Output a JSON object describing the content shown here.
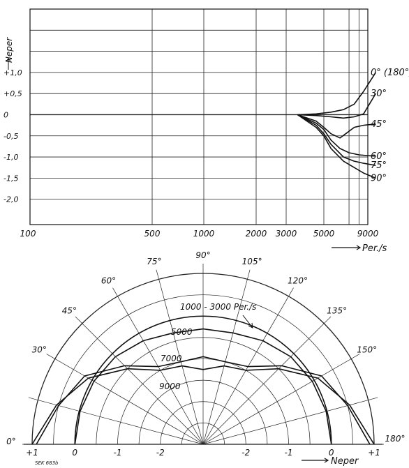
{
  "chart_data": [
    {
      "type": "line",
      "title": "",
      "ylabel": "Neper",
      "xlabel": "Per./s",
      "x_scale": "log",
      "x_ticks": [
        100,
        500,
        1000,
        2000,
        3000,
        5000,
        9000
      ],
      "x_tick_labels": [
        "100",
        "500",
        "1000",
        "2000",
        "3000",
        "5000",
        "9000"
      ],
      "y_ticks": [
        1.0,
        0.5,
        0,
        -0.5,
        -1.0,
        -1.5,
        -2.0
      ],
      "y_tick_labels": [
        "+1,0",
        "+0,5",
        "0",
        "-0,5",
        "-1,0",
        "-1,5",
        "-2,0"
      ],
      "ylim": [
        -2.6,
        2.5
      ],
      "grid": true,
      "series": [
        {
          "name": "0° (180°)",
          "x": [
            3500,
            4500,
            5500,
            6500,
            7500,
            8500,
            10000
          ],
          "y": [
            0,
            0.02,
            0.06,
            0.12,
            0.25,
            0.55,
            1.0
          ]
        },
        {
          "name": "30°",
          "x": [
            3500,
            4500,
            5500,
            6500,
            7500,
            8500,
            10000
          ],
          "y": [
            0,
            -0.02,
            -0.05,
            -0.08,
            -0.05,
            0.02,
            0.5
          ]
        },
        {
          "name": "45°",
          "x": [
            3500,
            4500,
            5000,
            5500,
            6200,
            6700,
            7500,
            8500,
            10000
          ],
          "y": [
            0,
            -0.15,
            -0.3,
            -0.45,
            -0.55,
            -0.45,
            -0.3,
            -0.25,
            -0.22
          ]
        },
        {
          "name": "60°",
          "x": [
            3500,
            4500,
            5000,
            5500,
            6200,
            7000,
            8000,
            9000,
            10000
          ],
          "y": [
            0,
            -0.2,
            -0.35,
            -0.6,
            -0.8,
            -0.9,
            -0.95,
            -0.97,
            -0.98
          ]
        },
        {
          "name": "75°",
          "x": [
            3500,
            4500,
            5000,
            5500,
            6500,
            7500,
            8500,
            10000
          ],
          "y": [
            0,
            -0.25,
            -0.45,
            -0.7,
            -1.0,
            -1.1,
            -1.15,
            -1.2
          ]
        },
        {
          "name": "90°",
          "x": [
            3500,
            4500,
            5000,
            5500,
            6500,
            7500,
            8500,
            10000
          ],
          "y": [
            0,
            -0.3,
            -0.5,
            -0.8,
            -1.1,
            -1.25,
            -1.38,
            -1.5
          ]
        }
      ]
    },
    {
      "type": "polar",
      "title": "",
      "radial_label": "Neper",
      "radial_tick_labels": [
        "+1",
        "0",
        "-1",
        "-2",
        "-2",
        "-1",
        "0",
        "+1"
      ],
      "angle_labels": [
        "0°",
        "30°",
        "45°",
        "60°",
        "75°",
        "90°",
        "105°",
        "120°",
        "135°",
        "150°",
        "180°"
      ],
      "angles_deg": [
        0,
        30,
        45,
        60,
        75,
        90,
        105,
        120,
        135,
        150,
        180
      ],
      "r_range": [
        -3,
        1
      ],
      "series": [
        {
          "name": "1000 - 3000 Per./s",
          "angles_deg": [
            0,
            180
          ],
          "value": 0
        },
        {
          "name": "5000",
          "angles_deg": [
            0,
            15,
            30,
            45,
            60,
            75,
            90,
            105,
            120,
            135,
            150,
            165,
            180
          ],
          "values": [
            0,
            -0.02,
            -0.05,
            -0.1,
            -0.2,
            -0.3,
            -0.3,
            -0.3,
            -0.2,
            -0.1,
            -0.05,
            -0.02,
            0
          ]
        },
        {
          "name": "7000",
          "angles_deg": [
            0,
            15,
            30,
            45,
            60,
            75,
            90,
            105,
            120,
            135,
            150,
            165,
            180
          ],
          "values": [
            0.9,
            0.5,
            0.2,
            -0.4,
            -0.9,
            -1.0,
            -0.95,
            -1.0,
            -0.9,
            -0.4,
            0.2,
            0.5,
            0.9
          ]
        },
        {
          "name": "9000",
          "angles_deg": [
            0,
            15,
            30,
            45,
            60,
            75,
            90,
            105,
            120,
            135,
            150,
            165,
            180
          ],
          "values": [
            1.0,
            0.55,
            0.1,
            -0.5,
            -1.0,
            -1.1,
            -1.25,
            -1.1,
            -1.0,
            -0.5,
            0.1,
            0.55,
            1.0
          ]
        }
      ]
    }
  ],
  "figure_code": "SEK 683b"
}
